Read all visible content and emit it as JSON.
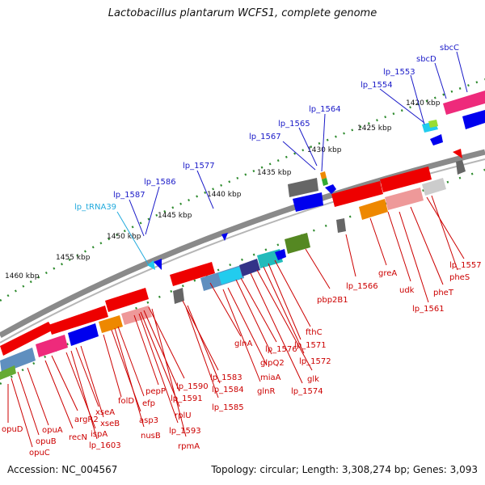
{
  "title": "Lactobacillus plantarum WCFS1, complete genome",
  "footer": {
    "accession": "Accession: NC_004567",
    "summary": "Topology: circular; Length: 3,308,274 bp; Genes: 3,093"
  },
  "scale_labels": [
    "1420 kbp",
    "1425 kbp",
    "1430 kbp",
    "1435 kbp",
    "1440 kbp",
    "1445 kbp",
    "1450 kbp",
    "1455 kbp",
    "1460 kbp"
  ],
  "top_genes": [
    {
      "name": "sbcC",
      "color": "blue"
    },
    {
      "name": "sbcD",
      "color": "blue"
    },
    {
      "name": "lp_1553",
      "color": "blue"
    },
    {
      "name": "lp_1554",
      "color": "blue"
    },
    {
      "name": "lp_1564",
      "color": "blue"
    },
    {
      "name": "lp_1565",
      "color": "blue"
    },
    {
      "name": "lp_1567",
      "color": "blue"
    },
    {
      "name": "lp_1577",
      "color": "blue"
    },
    {
      "name": "lp_1586",
      "color": "blue"
    },
    {
      "name": "lp_1587",
      "color": "blue"
    },
    {
      "name": "lp_tRNA39",
      "color": "cyan"
    }
  ],
  "bottom_genes": [
    "opuD",
    "opuB",
    "opuA",
    "opuC",
    "argR2",
    "recN",
    "xseA",
    "xseB",
    "ispA",
    "lp_1603",
    "folD",
    "efp",
    "asp3",
    "nusB",
    "pepP",
    "lp_1590",
    "lp_1591",
    "rplU",
    "lp_1593",
    "rpmA",
    "lp_1583",
    "lp_1584",
    "lp_1585",
    "glnA",
    "miaA",
    "glnR",
    "lp_1576",
    "glpQ2",
    "glk",
    "lp_1574",
    "fthC",
    "lp_1571",
    "lp_1572",
    "pbp2B1",
    "lp_1566",
    "greA",
    "udk",
    "pheT",
    "lp_1561",
    "lp_1557",
    "pheS"
  ],
  "colors": {
    "ring": "#8a8a8a",
    "dots": "#2e8b2e",
    "forward_blue": "#0000ee",
    "reverse_red": "#ee0000",
    "label_red": "#cc0000",
    "label_blue": "#1a1ac8",
    "label_cyan": "#22aadd"
  }
}
